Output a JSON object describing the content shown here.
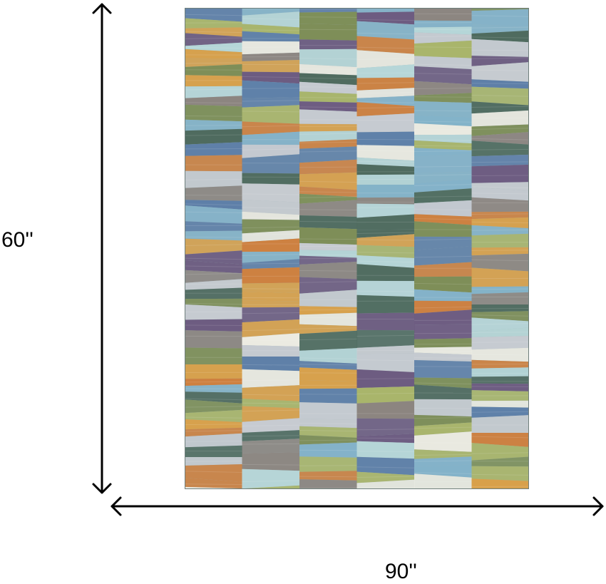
{
  "dimensions": {
    "height_label": "60''",
    "width_label": "90''"
  },
  "colors": {
    "arrow": "#000000",
    "palette": [
      "#5e7fa8",
      "#83b2c9",
      "#b6d6d8",
      "#ecebe2",
      "#d8a04a",
      "#ce7f3e",
      "#a9b56a",
      "#7d8e57",
      "#6c5a80",
      "#8c8580",
      "#4e6a5e",
      "#c7cbd1"
    ]
  }
}
